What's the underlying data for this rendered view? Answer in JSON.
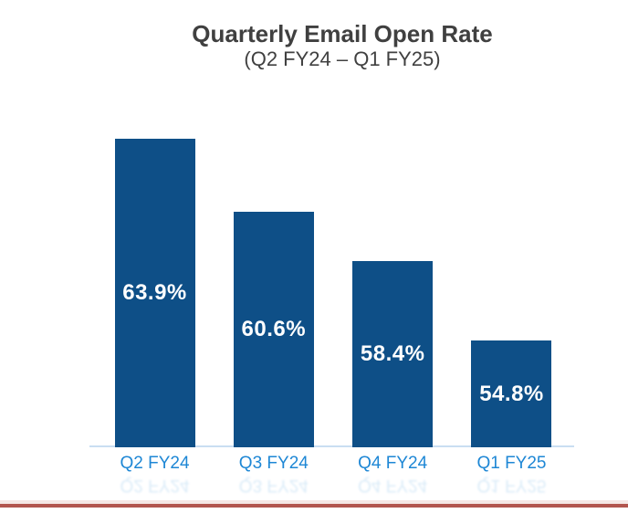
{
  "chart_data": {
    "type": "bar",
    "title": "Quarterly Email Open Rate",
    "subtitle": "(Q2 FY24 – Q1 FY25)",
    "categories": [
      "Q2 FY24",
      "Q3 FY24",
      "Q4 FY24",
      "Q1 FY25"
    ],
    "values": [
      63.9,
      60.6,
      58.4,
      54.8
    ],
    "data_labels": [
      "63.9%",
      "60.6%",
      "58.4%",
      "54.8%"
    ],
    "xlabel": "",
    "ylabel": "",
    "ylim": [
      50,
      65
    ],
    "grid": false,
    "legend": false,
    "value_label_position": "inside-center",
    "category_label_position": "below-axis",
    "colors": {
      "bar": "#0E4F87",
      "value_label": "#FFFFFF",
      "category_label": "#1E87D5",
      "title": "#404040",
      "axis_line": "#C9DEF2",
      "accent_line": "#B2564F",
      "accent_line_light": "#F5E8E6",
      "background": "#FFFFFF"
    }
  }
}
